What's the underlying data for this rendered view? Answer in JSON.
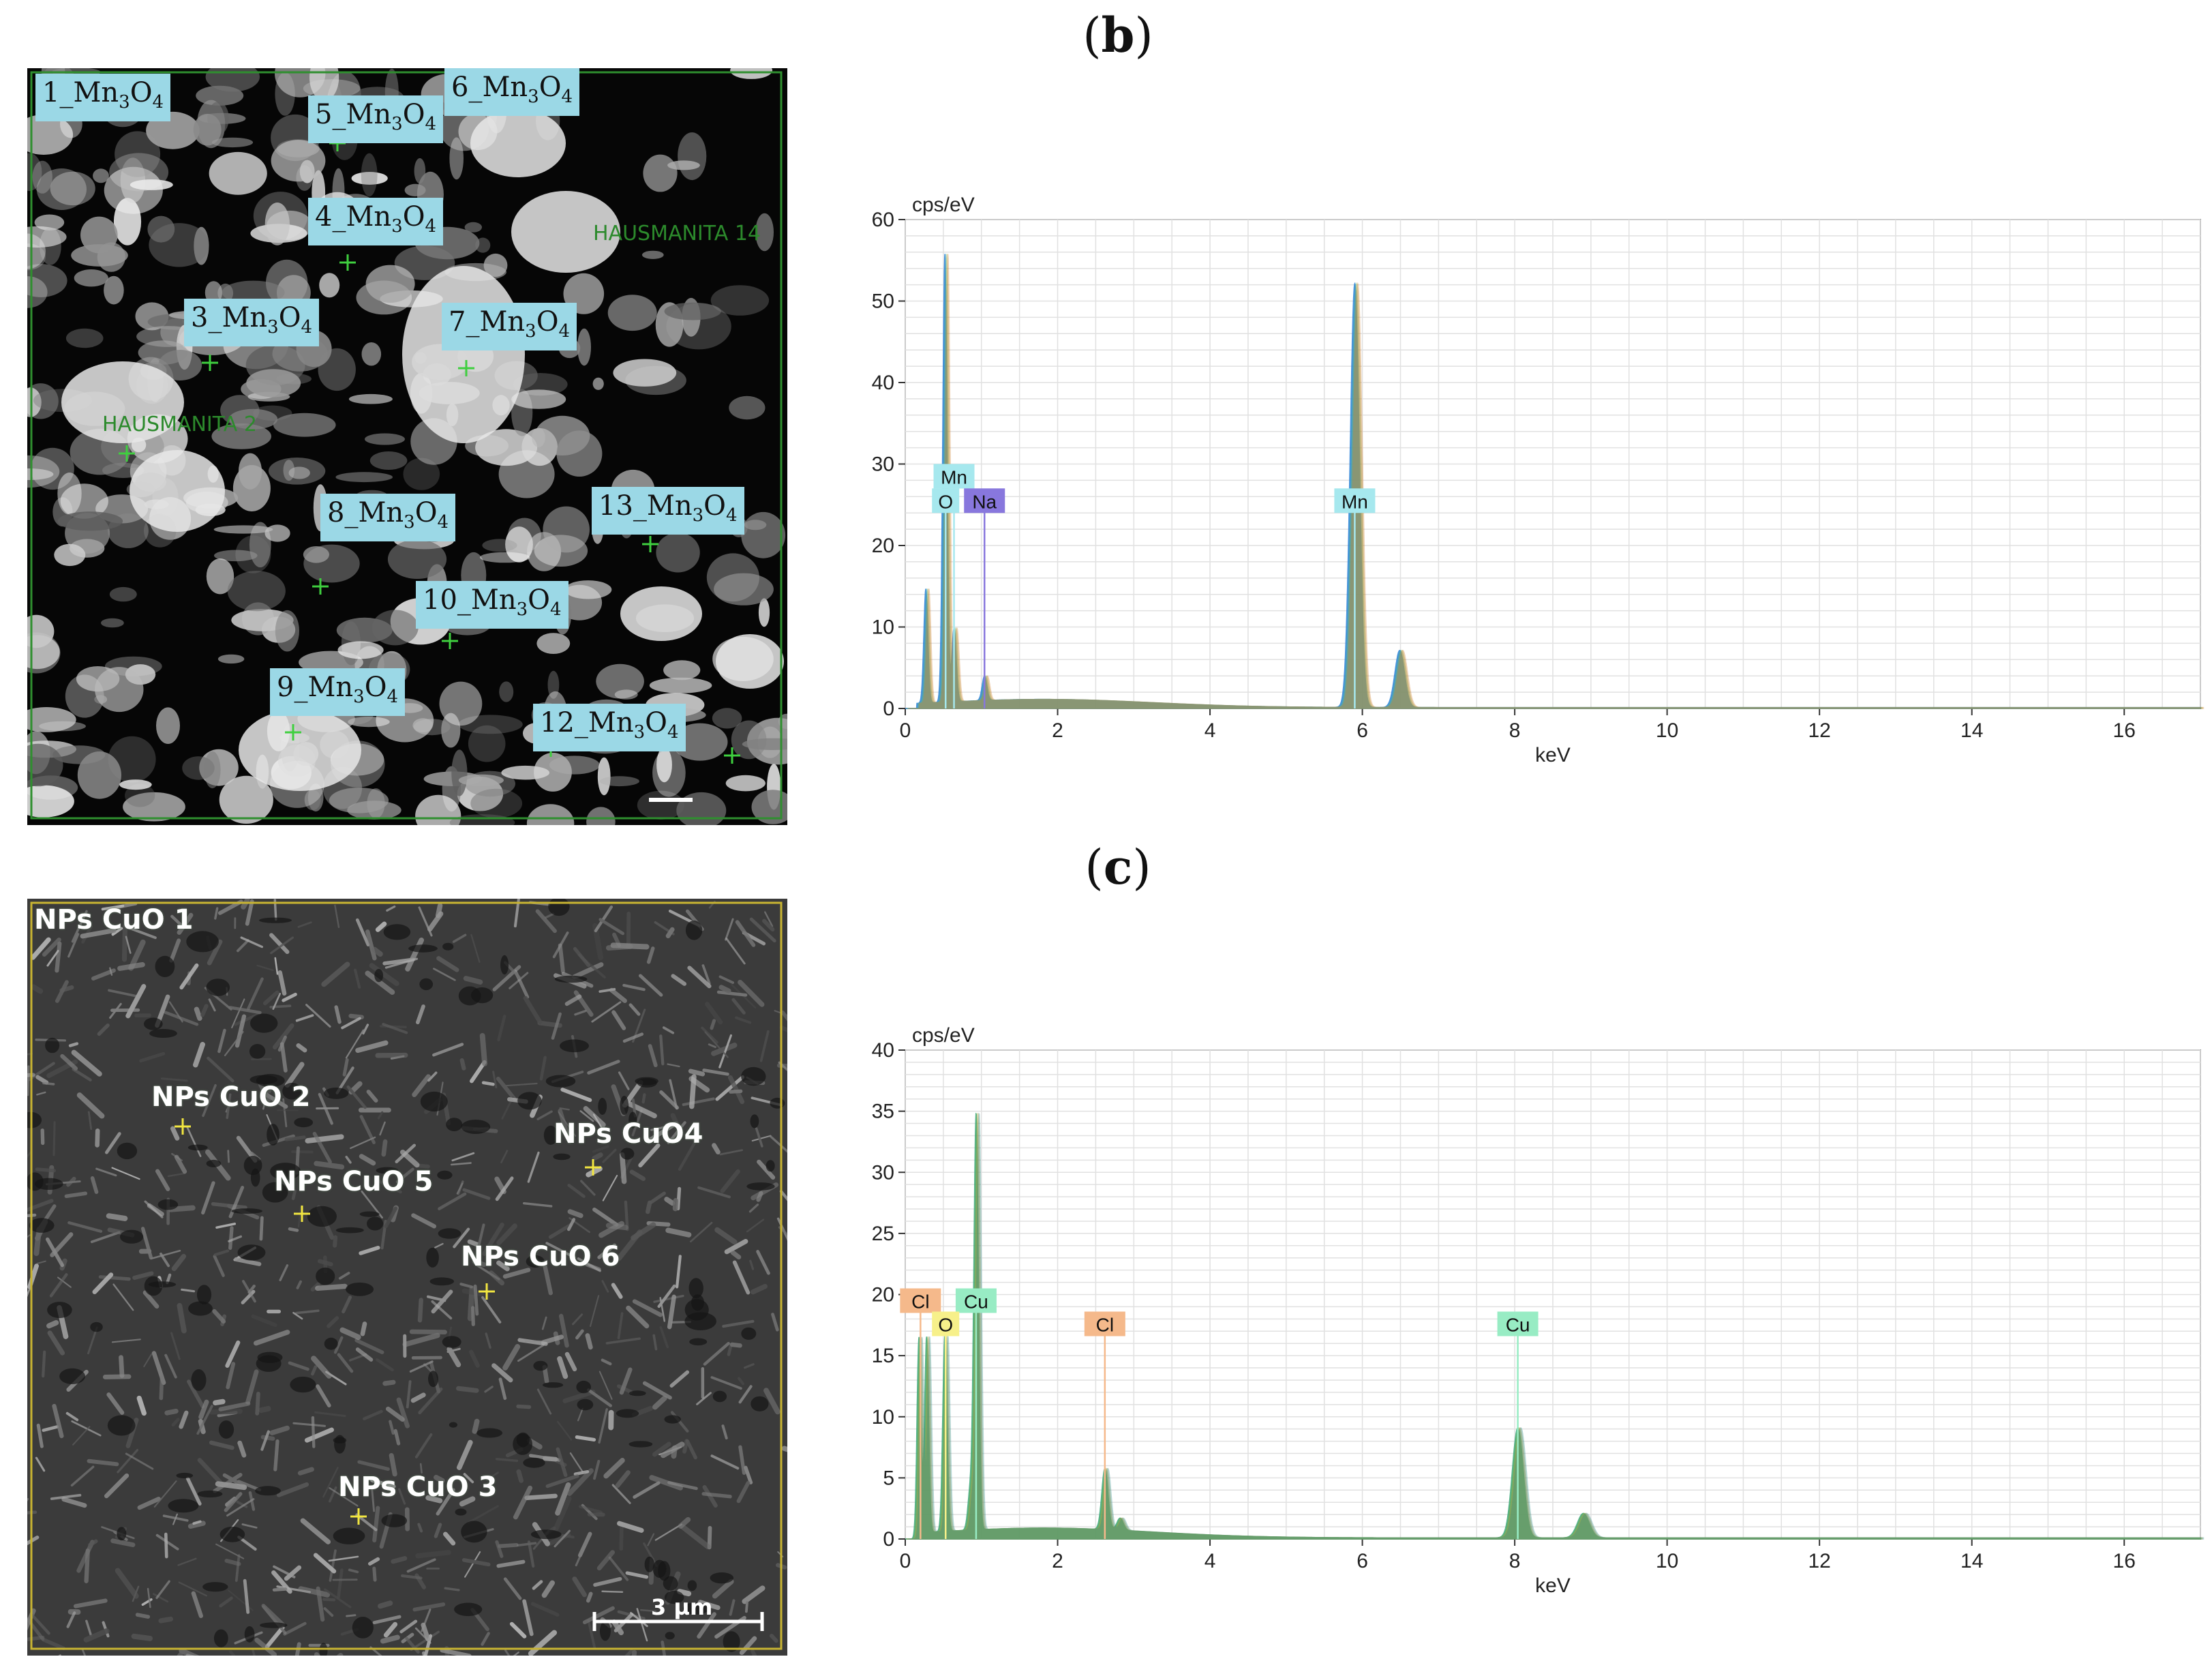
{
  "panels": {
    "b_label": "b",
    "c_label": "c"
  },
  "micrograph_b": {
    "spots": [
      {
        "num": "1",
        "base": "_Mn",
        "sub1": "3",
        "mid": "O",
        "sub2": "4"
      },
      {
        "num": "5",
        "base": "_Mn",
        "sub1": "3",
        "mid": "O",
        "sub2": "4"
      },
      {
        "num": "6",
        "base": "_Mn",
        "sub1": "3",
        "mid": "O",
        "sub2": "4"
      },
      {
        "num": "4",
        "base": "_Mn",
        "sub1": "3",
        "mid": "O",
        "sub2": "4"
      },
      {
        "num": "3",
        "base": "_Mn",
        "sub1": "3",
        "mid": "O",
        "sub2": "4"
      },
      {
        "num": "7",
        "base": "_Mn",
        "sub1": "3",
        "mid": "O",
        "sub2": "4"
      },
      {
        "num": "8",
        "base": "_Mn",
        "sub1": "3",
        "mid": "O",
        "sub2": "4"
      },
      {
        "num": "13",
        "base": "_Mn",
        "sub1": "3",
        "mid": "O",
        "sub2": "4"
      },
      {
        "num": "10",
        "base": "_Mn",
        "sub1": "3",
        "mid": "O",
        "sub2": "4"
      },
      {
        "num": "9",
        "base": "_Mn",
        "sub1": "3",
        "mid": "O",
        "sub2": "4"
      },
      {
        "num": "12",
        "base": "_Mn",
        "sub1": "3",
        "mid": "O",
        "sub2": "4"
      }
    ],
    "faint_labels": [
      "HAUSMANITA 14",
      "HAUSMANITA 2"
    ]
  },
  "micrograph_c": {
    "spots": [
      "NPs CuO 1",
      "NPs CuO  2",
      "NPs CuO4",
      "NPs CuO  5",
      "NPs CuO  6",
      "NPs CuO  3"
    ],
    "scale_bar": "3 µm"
  },
  "chart_data": [
    {
      "type": "line",
      "ylabel": "cps/eV",
      "xlabel": "keV",
      "xlim": [
        0,
        17
      ],
      "ylim": [
        0,
        60
      ],
      "xticks": [
        "0",
        "2",
        "4",
        "6",
        "8",
        "10",
        "12",
        "14",
        "16"
      ],
      "yticks": [
        "0",
        "10",
        "20",
        "30",
        "40",
        "50",
        "60"
      ],
      "grid": true,
      "peaks": [
        {
          "x": 0.27,
          "y": 14
        },
        {
          "x": 0.52,
          "y": 55
        },
        {
          "x": 0.64,
          "y": 9
        },
        {
          "x": 1.04,
          "y": 3
        },
        {
          "x": 5.9,
          "y": 52
        },
        {
          "x": 6.49,
          "y": 7
        }
      ],
      "element_labels": [
        {
          "text": "Mn",
          "x": 0.64,
          "y": 28.5,
          "color": "#a6e8ee"
        },
        {
          "text": "O",
          "x": 0.53,
          "y": 25.5,
          "color": "#a6e8ee"
        },
        {
          "text": "Na",
          "x": 1.04,
          "y": 25.5,
          "color": "#8877dd"
        },
        {
          "text": "Mn",
          "x": 5.9,
          "y": 25.5,
          "color": "#a6e8ee"
        }
      ]
    },
    {
      "type": "line",
      "ylabel": "cps/eV",
      "xlabel": "keV",
      "xlim": [
        0,
        17
      ],
      "ylim": [
        0,
        40
      ],
      "xticks": [
        "0",
        "2",
        "4",
        "6",
        "8",
        "10",
        "12",
        "14",
        "16"
      ],
      "yticks": [
        "0",
        "5",
        "10",
        "15",
        "20",
        "25",
        "30",
        "35",
        "40"
      ],
      "grid": true,
      "peaks": [
        {
          "x": 0.18,
          "y": 16
        },
        {
          "x": 0.28,
          "y": 16
        },
        {
          "x": 0.52,
          "y": 16
        },
        {
          "x": 0.85,
          "y": 3
        },
        {
          "x": 0.93,
          "y": 34
        },
        {
          "x": 2.62,
          "y": 5
        },
        {
          "x": 2.82,
          "y": 1
        },
        {
          "x": 8.04,
          "y": 9
        },
        {
          "x": 8.9,
          "y": 2
        }
      ],
      "element_labels": [
        {
          "text": "Cl",
          "x": 0.2,
          "y": 19.5,
          "color": "#f5b98b"
        },
        {
          "text": "Cu",
          "x": 0.93,
          "y": 19.5,
          "color": "#98ecc4"
        },
        {
          "text": "O",
          "x": 0.53,
          "y": 17.6,
          "color": "#f7f08a"
        },
        {
          "text": "Cl",
          "x": 2.62,
          "y": 17.6,
          "color": "#f5b98b"
        },
        {
          "text": "Cu",
          "x": 8.04,
          "y": 17.6,
          "color": "#98ecc4"
        }
      ]
    }
  ]
}
